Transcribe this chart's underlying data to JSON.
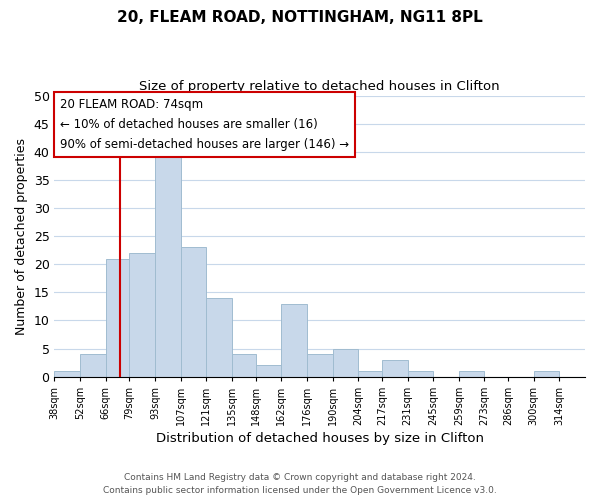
{
  "title": "20, FLEAM ROAD, NOTTINGHAM, NG11 8PL",
  "subtitle": "Size of property relative to detached houses in Clifton",
  "xlabel": "Distribution of detached houses by size in Clifton",
  "ylabel": "Number of detached properties",
  "bin_labels": [
    "38sqm",
    "52sqm",
    "66sqm",
    "79sqm",
    "93sqm",
    "107sqm",
    "121sqm",
    "135sqm",
    "148sqm",
    "162sqm",
    "176sqm",
    "190sqm",
    "204sqm",
    "217sqm",
    "231sqm",
    "245sqm",
    "259sqm",
    "273sqm",
    "286sqm",
    "300sqm",
    "314sqm"
  ],
  "bar_heights": [
    1,
    4,
    21,
    22,
    39,
    23,
    14,
    4,
    2,
    13,
    4,
    5,
    1,
    3,
    1,
    0,
    1,
    0,
    0,
    1
  ],
  "bar_color": "#c8d8ea",
  "bar_edge_color": "#a0bcd0",
  "ylim": [
    0,
    50
  ],
  "yticks": [
    0,
    5,
    10,
    15,
    20,
    25,
    30,
    35,
    40,
    45,
    50
  ],
  "bin_edges": [
    38,
    52,
    66,
    79,
    93,
    107,
    121,
    135,
    148,
    162,
    176,
    190,
    204,
    217,
    231,
    245,
    259,
    273,
    286,
    300,
    314
  ],
  "property_line_x": 74,
  "annotation_title": "20 FLEAM ROAD: 74sqm",
  "annotation_line1": "← 10% of detached houses are smaller (16)",
  "annotation_line2": "90% of semi-detached houses are larger (146) →",
  "annotation_box_color": "#ffffff",
  "annotation_box_edge_color": "#cc0000",
  "vline_color": "#cc0000",
  "footer1": "Contains HM Land Registry data © Crown copyright and database right 2024.",
  "footer2": "Contains public sector information licensed under the Open Government Licence v3.0.",
  "background_color": "#ffffff",
  "grid_color": "#c8d8ea"
}
